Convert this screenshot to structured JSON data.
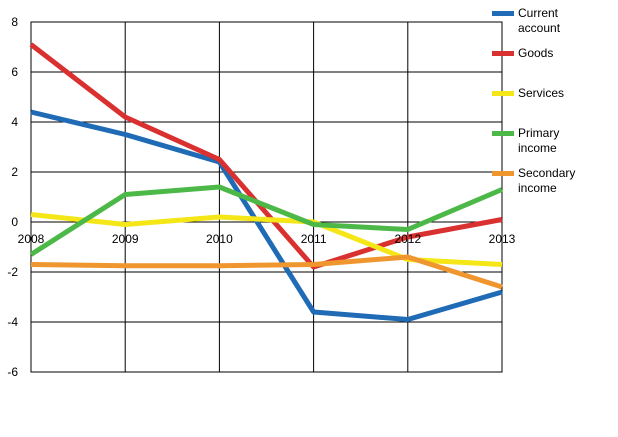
{
  "chart_data": {
    "type": "line",
    "categories": [
      "2008",
      "2009",
      "2010",
      "2011",
      "2012",
      "2013"
    ],
    "series": [
      {
        "name": "Current account",
        "color": "#1f6bb5",
        "values": [
          4.4,
          3.5,
          2.4,
          -3.6,
          -3.9,
          -2.8
        ]
      },
      {
        "name": "Goods",
        "color": "#d9312f",
        "values": [
          7.1,
          4.2,
          2.5,
          -1.8,
          -0.6,
          0.1
        ]
      },
      {
        "name": "Services",
        "color": "#f5e617",
        "values": [
          0.3,
          -0.1,
          0.2,
          0.0,
          -1.5,
          -1.7
        ]
      },
      {
        "name": "Primary income",
        "color": "#4cb847",
        "values": [
          -1.3,
          1.1,
          1.4,
          -0.1,
          -0.3,
          1.3
        ]
      },
      {
        "name": "Secondary income",
        "color": "#f0962e",
        "values": [
          -1.7,
          -1.75,
          -1.75,
          -1.7,
          -1.4,
          -2.6
        ]
      }
    ],
    "ylim": [
      -6,
      8
    ],
    "yticks": [
      -6,
      -4,
      -2,
      0,
      2,
      4,
      6,
      8
    ],
    "grid": true,
    "legend": "right"
  }
}
